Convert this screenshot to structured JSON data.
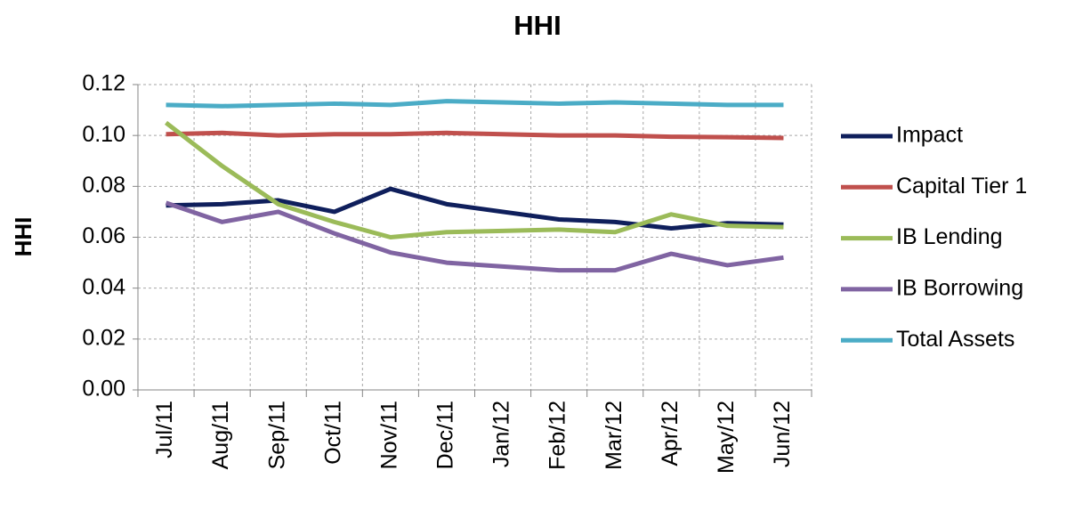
{
  "chart_data": {
    "type": "line",
    "title": "HHI",
    "y_label": "HHI",
    "categories": [
      "Jul/11",
      "Aug/11",
      "Sep/11",
      "Oct/11",
      "Nov/11",
      "Dec/11",
      "Jan/12",
      "Feb/12",
      "Mar/12",
      "Apr/12",
      "May/12",
      "Jun/12"
    ],
    "series": [
      {
        "name": "Impact",
        "color": "#0f1f5c",
        "values": [
          0.0725,
          0.073,
          0.0745,
          0.07,
          0.079,
          0.073,
          0.07,
          0.067,
          0.066,
          0.0635,
          0.0655,
          0.065
        ]
      },
      {
        "name": "Capital Tier 1",
        "color": "#c0504d",
        "values": [
          0.1005,
          0.101,
          0.1,
          0.1005,
          0.1005,
          0.101,
          0.1005,
          0.1,
          0.1,
          0.0995,
          0.0993,
          0.099
        ]
      },
      {
        "name": "IB Lending",
        "color": "#9bbb59",
        "values": [
          0.105,
          0.088,
          0.073,
          0.066,
          0.06,
          0.062,
          0.0625,
          0.063,
          0.062,
          0.069,
          0.0645,
          0.064
        ]
      },
      {
        "name": "IB Borrowing",
        "color": "#8064a2",
        "values": [
          0.0735,
          0.066,
          0.07,
          0.0615,
          0.054,
          0.05,
          0.0485,
          0.047,
          0.047,
          0.0535,
          0.049,
          0.052
        ]
      },
      {
        "name": "Total Assets",
        "color": "#4bacc6",
        "values": [
          0.112,
          0.1115,
          0.112,
          0.1125,
          0.112,
          0.1135,
          0.113,
          0.1125,
          0.113,
          0.1125,
          0.112,
          0.112
        ]
      }
    ],
    "ylim": [
      0,
      0.12
    ],
    "yticks": [
      {
        "value": 0,
        "label": "0.00"
      },
      0.02,
      0.04,
      0.06,
      0.08,
      {
        "value": 0.1,
        "label": "0.10"
      },
      0.12
    ],
    "grid": true,
    "legend": "right"
  }
}
